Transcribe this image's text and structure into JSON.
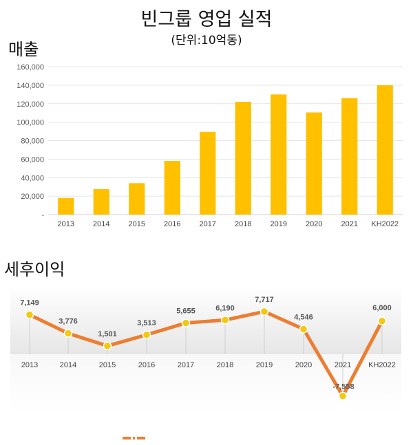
{
  "title": "빈그룹 영업 실적",
  "subtitle": "(단위:10억동)",
  "colors": {
    "bar": "#FFC000",
    "line": "#ED7D31",
    "marker": "#F2C811",
    "axis": "#d0d0d0",
    "grid": "#e4e4e4"
  },
  "chart_data": [
    {
      "type": "bar",
      "label": "매출",
      "categories": [
        "2013",
        "2014",
        "2015",
        "2016",
        "2017",
        "2018",
        "2019",
        "2020",
        "2021",
        "KH2022"
      ],
      "values": [
        18000,
        27500,
        34000,
        58000,
        89500,
        122000,
        130000,
        110500,
        126000,
        140000
      ],
      "ylim": [
        0,
        160000
      ],
      "yticks": [
        0,
        20000,
        40000,
        60000,
        80000,
        100000,
        120000,
        140000,
        160000
      ],
      "ytick_labels": [
        "-",
        "20,000",
        "40,000",
        "60,000",
        "80,000",
        "100,000",
        "120,000",
        "140,000",
        "160,000"
      ],
      "grid": true
    },
    {
      "type": "line",
      "label": "세후이익",
      "categories": [
        "2013",
        "2014",
        "2015",
        "2016",
        "2017",
        "2018",
        "2019",
        "2020",
        "2021",
        "KH2022"
      ],
      "values": [
        7149,
        3776,
        1501,
        3513,
        5655,
        6190,
        7717,
        4546,
        -7558,
        6000
      ],
      "data_labels": [
        "7,149",
        "3,776",
        "1,501",
        "3,513",
        "5,655",
        "6,190",
        "7,717",
        "4,546",
        "-7,558",
        "6,000"
      ],
      "grid": false
    }
  ]
}
